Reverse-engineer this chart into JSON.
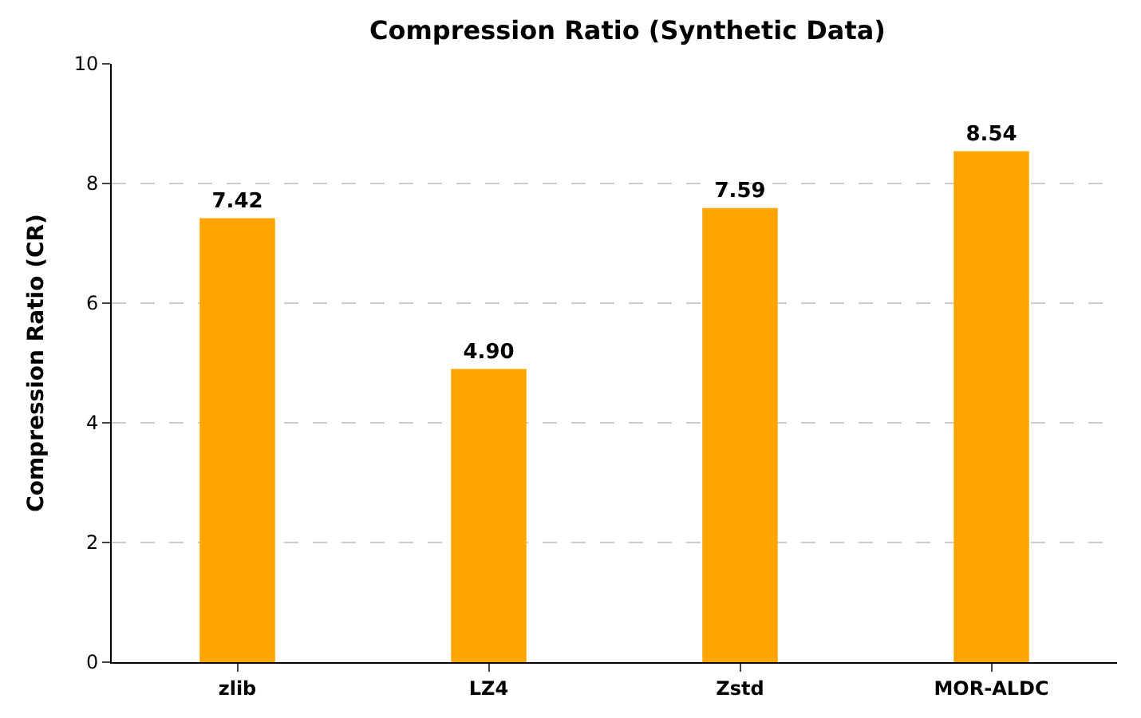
{
  "chart_data": {
    "type": "bar",
    "title": "Compression Ratio (Synthetic Data)",
    "ylabel": "Compression Ratio (CR)",
    "categories": [
      "zlib",
      "LZ4",
      "Zstd",
      "MOR-ALDC"
    ],
    "values": [
      7.42,
      4.9,
      7.59,
      8.54
    ],
    "value_labels": [
      "7.42",
      "4.90",
      "7.59",
      "8.54"
    ],
    "color": "#ffa500",
    "ylim": [
      0,
      10
    ],
    "yticks": [
      0,
      2,
      4,
      6,
      8,
      10
    ],
    "grid": "y",
    "line_style": "dashed"
  }
}
